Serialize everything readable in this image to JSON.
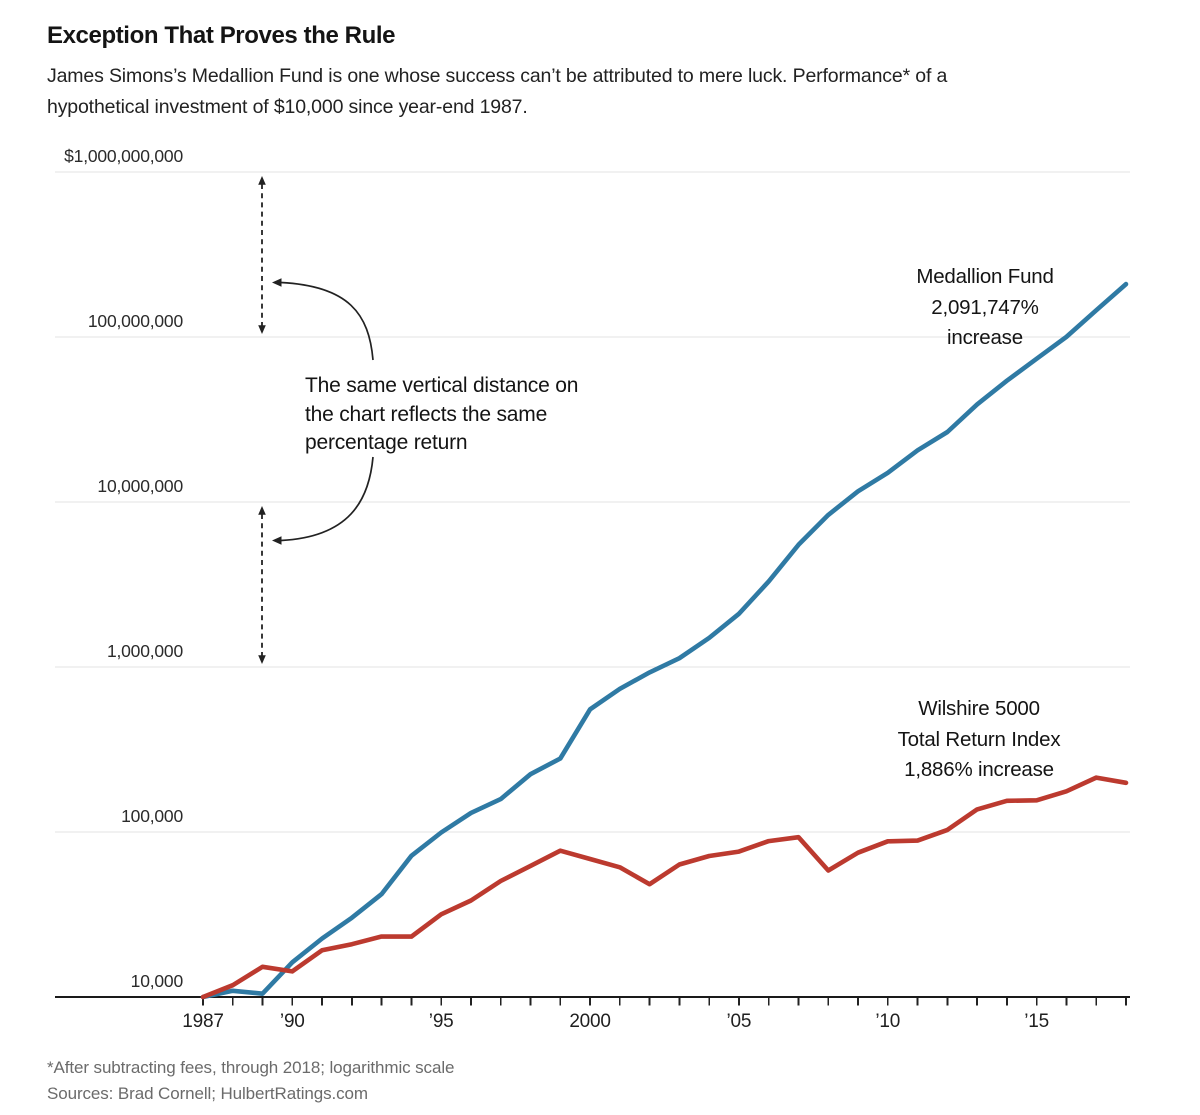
{
  "header": {
    "title": "Exception That Proves the Rule",
    "subtitle_lines": [
      "James Simons’s Medallion Fund is one whose success can’t be attributed to mere luck. Performance* of a",
      "hypothetical investment of $10,000 since year-end 1987."
    ]
  },
  "annotation": {
    "lines": [
      "The same vertical distance on",
      "the chart reflects the same",
      "percentage return"
    ]
  },
  "footer": {
    "footnote": "*After subtracting fees, through 2018; logarithmic scale",
    "sources": "Sources: Brad Cornell; HulbertRatings.com"
  },
  "colors": {
    "medallion": "#2f7aa4",
    "wilshire": "#bc3a2f",
    "gridline": "#e3e3e3",
    "axis": "#1a1a1a",
    "tick": "#222222",
    "arrow": "#222222"
  },
  "chart_data": {
    "type": "line",
    "scale": "log10",
    "title": "Exception That Proves the Rule",
    "ylim": [
      10000,
      1000000000
    ],
    "grid": "horizontal",
    "x": [
      1987,
      1988,
      1989,
      1990,
      1991,
      1992,
      1993,
      1994,
      1995,
      1996,
      1997,
      1998,
      1999,
      2000,
      2001,
      2002,
      2003,
      2004,
      2005,
      2006,
      2007,
      2008,
      2009,
      2010,
      2011,
      2012,
      2013,
      2014,
      2015,
      2016,
      2017,
      2018
    ],
    "series": [
      {
        "name": "Medallion Fund",
        "label_lines": [
          "Medallion Fund",
          "2,091,747%",
          "increase"
        ],
        "color": "#2f7aa4",
        "values": [
          10000,
          10900,
          10464,
          16230,
          22624,
          30225,
          42043,
          71767,
          99254,
          130519,
          158189,
          224174,
          279097,
          554008,
          736831,
          926933,
          1129932,
          1500000,
          2100000,
          3300000,
          5500000,
          8355000,
          11614000,
          15028000,
          20588000,
          26560000,
          39016000,
          54310000,
          73862000,
          100158000,
          145229000,
          209185000
        ]
      },
      {
        "name": "Wilshire 5000 Total Return Index",
        "label_lines": [
          "Wilshire 5000",
          "Total Return Index",
          "1,886% increase"
        ],
        "color": "#bc3a2f",
        "values": [
          10000,
          11790,
          15233,
          14289,
          19176,
          20902,
          23264,
          23241,
          31724,
          38450,
          50485,
          62299,
          77001,
          68608,
          61061,
          48299,
          63561,
          71506,
          76082,
          88103,
          93037,
          58427,
          74962,
          87855,
          88734,
          103020,
          137120,
          154534,
          155616,
          176469,
          213527,
          198600
        ]
      }
    ],
    "y_ticks": [
      {
        "label": "$1,000,000,000",
        "value": 1000000000
      },
      {
        "label": "100,000,000",
        "value": 100000000
      },
      {
        "label": "10,000,000",
        "value": 10000000
      },
      {
        "label": "1,000,000",
        "value": 1000000
      },
      {
        "label": "100,000",
        "value": 100000
      },
      {
        "label": "10,000",
        "value": 10000
      }
    ],
    "x_ticks": [
      {
        "label": "1987",
        "year": 1987
      },
      {
        "label": "’90",
        "year": 1990
      },
      {
        "label": "’95",
        "year": 1995
      },
      {
        "label": "2000",
        "year": 2000
      },
      {
        "label": "’05",
        "year": 2005
      },
      {
        "label": "’10",
        "year": 2010
      },
      {
        "label": "’15",
        "year": 2015
      }
    ]
  }
}
